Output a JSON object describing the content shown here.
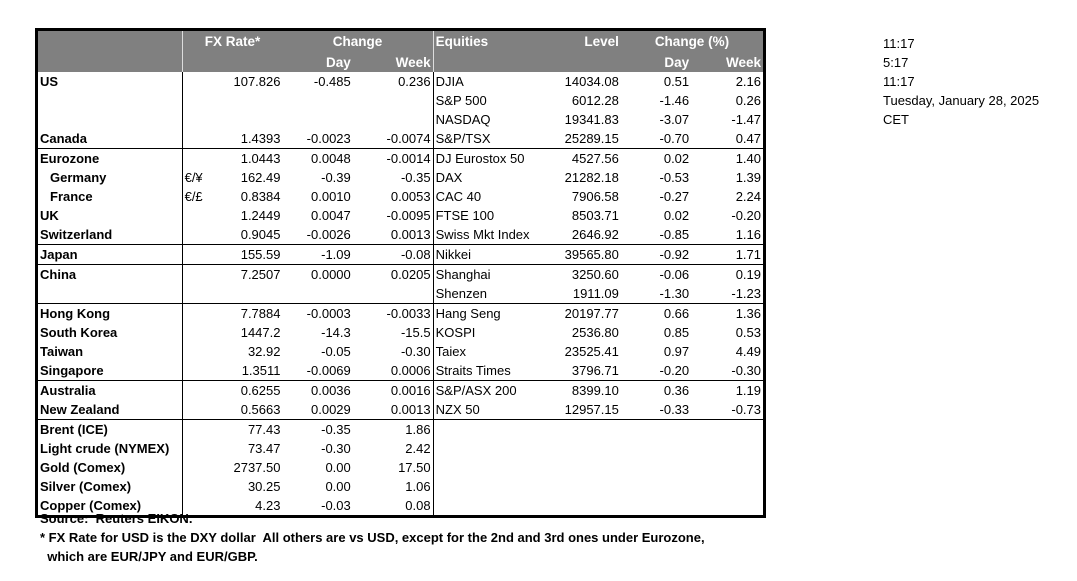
{
  "header": {
    "fx_rate": "FX Rate*",
    "change": "Change",
    "day": "Day",
    "week": "Week",
    "equities": "Equities",
    "level": "Level",
    "change_pct": "Change (%)",
    "eq_day": "Day",
    "eq_week": "Week"
  },
  "groups": [
    [
      {
        "name": "US",
        "sub": "",
        "fx": "107.826",
        "day": "-0.485",
        "week": "0.236",
        "eq": "DJIA",
        "level": "14034.08",
        "eday": "0.51",
        "eweek": "2.16"
      },
      {
        "name": "",
        "sub": "",
        "fx": "",
        "day": "",
        "week": "",
        "eq": "S&P 500",
        "level": "6012.28",
        "eday": "-1.46",
        "eweek": "0.26"
      },
      {
        "name": "",
        "sub": "",
        "fx": "",
        "day": "",
        "week": "",
        "eq": "NASDAQ",
        "level": "19341.83",
        "eday": "-3.07",
        "eweek": "-1.47"
      },
      {
        "name": "Canada",
        "sub": "",
        "fx": "1.4393",
        "day": "-0.0023",
        "week": "-0.0074",
        "eq": "S&P/TSX",
        "level": "25289.15",
        "eday": "-0.70",
        "eweek": "0.47"
      }
    ],
    [
      {
        "name": "Eurozone",
        "sub": "",
        "fx": "1.0443",
        "day": "0.0048",
        "week": "-0.0014",
        "eq": "DJ Eurostox 50",
        "level": "4527.56",
        "eday": "0.02",
        "eweek": "1.40"
      },
      {
        "name": "Germany",
        "indent": true,
        "sub": "€/¥",
        "fx": "162.49",
        "day": "-0.39",
        "week": "-0.35",
        "eq": "DAX",
        "level": "21282.18",
        "eday": "-0.53",
        "eweek": "1.39"
      },
      {
        "name": "France",
        "indent": true,
        "sub": "€/£",
        "fx": "0.8384",
        "day": "0.0010",
        "week": "0.0053",
        "eq": "CAC 40",
        "level": "7906.58",
        "eday": "-0.27",
        "eweek": "2.24"
      },
      {
        "name": "UK",
        "sub": "",
        "fx": "1.2449",
        "day": "0.0047",
        "week": "-0.0095",
        "eq": "FTSE 100",
        "level": "8503.71",
        "eday": "0.02",
        "eweek": "-0.20"
      },
      {
        "name": "Switzerland",
        "sub": "",
        "fx": "0.9045",
        "day": "-0.0026",
        "week": "0.0013",
        "eq": "Swiss Mkt Index",
        "level": "2646.92",
        "eday": "-0.85",
        "eweek": "1.16"
      }
    ],
    [
      {
        "name": "Japan",
        "sub": "",
        "fx": "155.59",
        "day": "-1.09",
        "week": "-0.08",
        "eq": "Nikkei",
        "level": "39565.80",
        "eday": "-0.92",
        "eweek": "1.71"
      }
    ],
    [
      {
        "name": "China",
        "sub": "",
        "fx": "7.2507",
        "day": "0.0000",
        "week": "0.0205",
        "eq": "Shanghai",
        "level": "3250.60",
        "eday": "-0.06",
        "eweek": "0.19"
      },
      {
        "name": "",
        "sub": "",
        "fx": "",
        "day": "",
        "week": "",
        "eq": "Shenzen",
        "level": "1911.09",
        "eday": "-1.30",
        "eweek": "-1.23"
      }
    ],
    [
      {
        "name": "Hong Kong",
        "sub": "",
        "fx": "7.7884",
        "day": "-0.0003",
        "week": "-0.0033",
        "eq": "Hang Seng",
        "level": "20197.77",
        "eday": "0.66",
        "eweek": "1.36"
      },
      {
        "name": "South Korea",
        "sub": "",
        "fx": "1447.2",
        "day": "-14.3",
        "week": "-15.5",
        "eq": "KOSPI",
        "level": "2536.80",
        "eday": "0.85",
        "eweek": "0.53"
      },
      {
        "name": "Taiwan",
        "sub": "",
        "fx": "32.92",
        "day": "-0.05",
        "week": "-0.30",
        "eq": "Taiex",
        "level": "23525.41",
        "eday": "0.97",
        "eweek": "4.49"
      },
      {
        "name": "Singapore",
        "sub": "",
        "fx": "1.3511",
        "day": "-0.0069",
        "week": "0.0006",
        "eq": "Straits Times",
        "level": "3796.71",
        "eday": "-0.20",
        "eweek": "-0.30"
      }
    ],
    [
      {
        "name": "Australia",
        "sub": "",
        "fx": "0.6255",
        "day": "0.0036",
        "week": "0.0016",
        "eq": "S&P/ASX  200",
        "level": "8399.10",
        "eday": "0.36",
        "eweek": "1.19"
      },
      {
        "name": "New Zealand",
        "sub": "",
        "fx": "0.5663",
        "day": "0.0029",
        "week": "0.0013",
        "eq": "NZX 50",
        "level": "12957.15",
        "eday": "-0.33",
        "eweek": "-0.73"
      }
    ],
    [
      {
        "name": "Brent (ICE)",
        "sub": "",
        "fx": "77.43",
        "day": "-0.35",
        "week": "1.86",
        "eq": "",
        "level": "",
        "eday": "",
        "eweek": ""
      },
      {
        "name": "Light crude (NYMEX)",
        "sub": "",
        "fx": "73.47",
        "day": "-0.30",
        "week": "2.42",
        "eq": "",
        "level": "",
        "eday": "",
        "eweek": ""
      },
      {
        "name": "Gold (Comex)",
        "sub": "",
        "fx": "2737.50",
        "day": "0.00",
        "week": "17.50",
        "eq": "",
        "level": "",
        "eday": "",
        "eweek": ""
      },
      {
        "name": "Silver (Comex)",
        "sub": "",
        "fx": "30.25",
        "day": "0.00",
        "week": "1.06",
        "eq": "",
        "level": "",
        "eday": "",
        "eweek": ""
      },
      {
        "name": "Copper (Comex)",
        "sub": "",
        "fx": "4.23",
        "day": "-0.03",
        "week": "0.08",
        "eq": "",
        "level": "",
        "eday": "",
        "eweek": ""
      }
    ]
  ],
  "footnotes": [
    "Source:  Reuters EIKON.",
    "* FX Rate for USD is the DXY dollar  All others are vs USD, except for the 2nd and 3rd ones under Eurozone,",
    "  which are EUR/JPY and EUR/GBP."
  ],
  "side_info": [
    "11:17",
    "5:17",
    "11:17",
    "Tuesday, January 28, 2025",
    "CET"
  ]
}
